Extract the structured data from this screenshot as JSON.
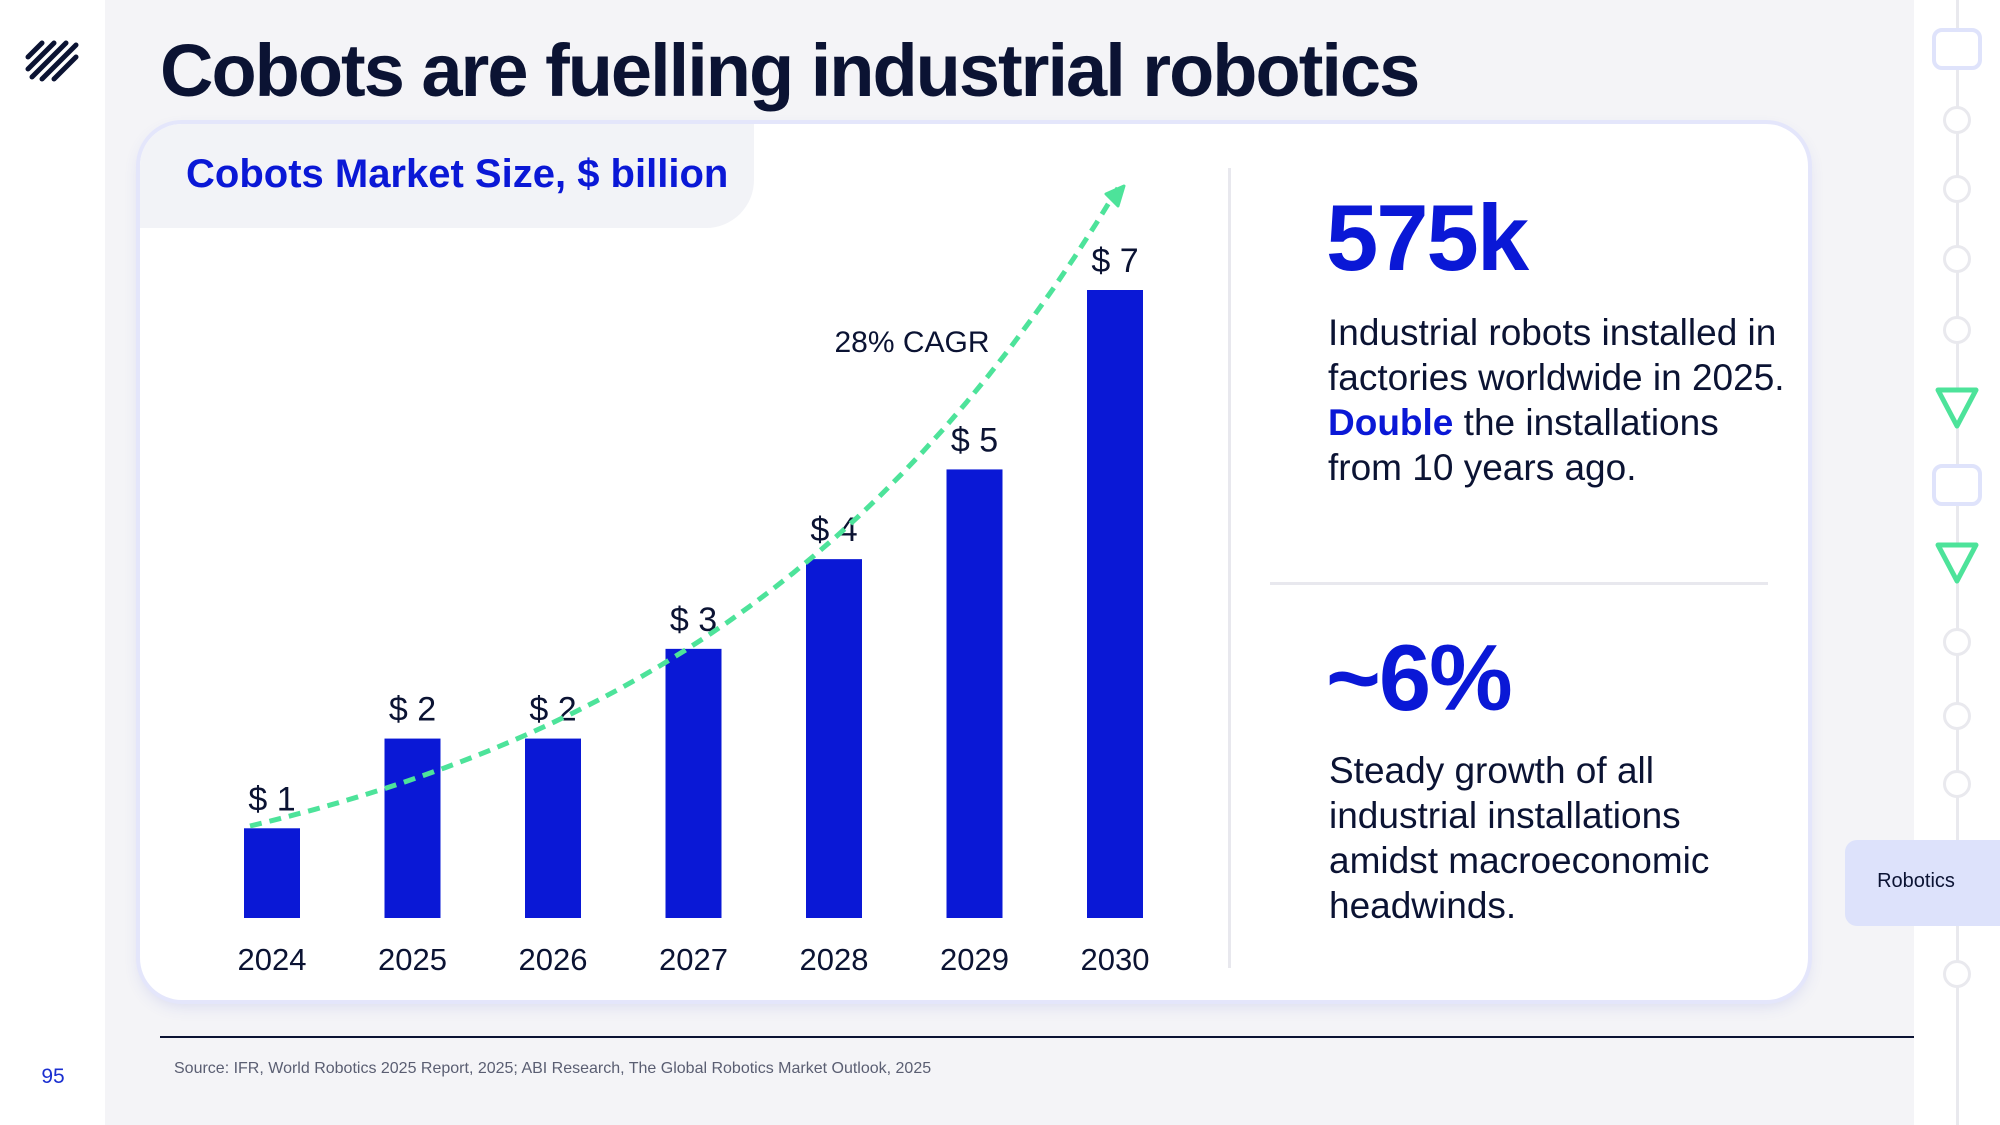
{
  "slide": {
    "title": "Cobots are fuelling industrial robotics",
    "page_number": "95",
    "source": "Source: IFR, World Robotics 2025 Report, 2025; ABI Research, The Global Robotics Market Outlook, 2025",
    "section_tab": "Robotics",
    "logo_icon": "stacked-diagonal-lines-logo-icon"
  },
  "chart_data": {
    "type": "bar",
    "title": "Cobots Market Size, $ billion",
    "categories": [
      "2024",
      "2025",
      "2026",
      "2027",
      "2028",
      "2029",
      "2030"
    ],
    "values": [
      1,
      2,
      2,
      3,
      4,
      5,
      7
    ],
    "data_labels": [
      "$ 1",
      "$ 2",
      "$ 2",
      "$ 3",
      "$ 4",
      "$ 5",
      "$ 7"
    ],
    "annotation": "28% CAGR",
    "bar_color": "#0a18d6",
    "trend_color": "#4de39a",
    "grid": false,
    "y_axis_shown": false
  },
  "stats": [
    {
      "value": "575k",
      "desc_before": "Industrial robots installed in factories worldwide in 2025.",
      "desc_highlight": "Double",
      "desc_after": "the installations from 10 years ago."
    },
    {
      "value": "~6%",
      "desc": "Steady growth of all industrial installations amidst macroeconomic headwinds."
    }
  ],
  "colors": {
    "accent": "#0a18d6",
    "title": "#0b1333",
    "trend": "#4de39a",
    "background": "#f4f4f7"
  }
}
